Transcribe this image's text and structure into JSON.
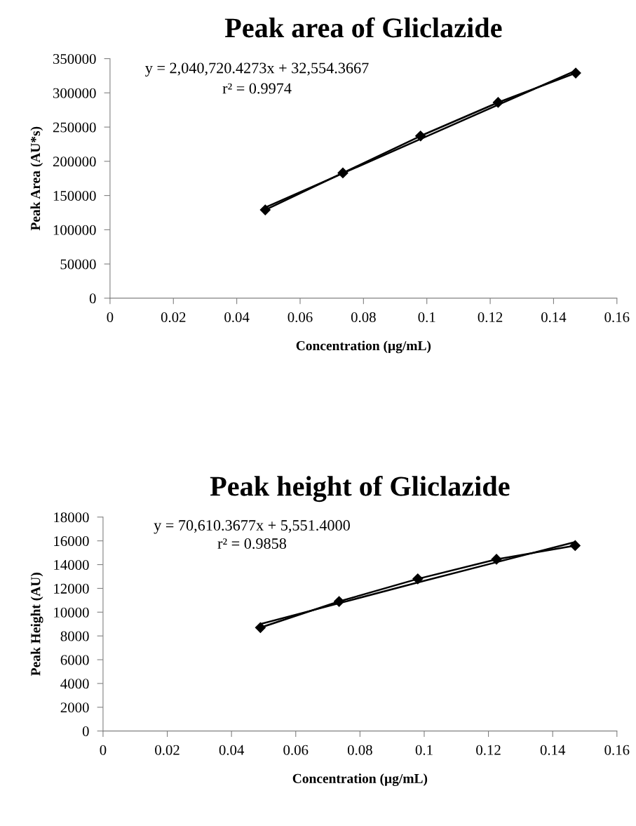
{
  "chart_data": [
    {
      "type": "line",
      "title": "Peak area of Gliclazide",
      "xlabel": "Concentration (µg/mL)",
      "ylabel": "Peak Area (AU*s)",
      "x": [
        0.049,
        0.0735,
        0.098,
        0.1225,
        0.147
      ],
      "series": [
        {
          "color": "#000000",
          "marker": "diamond",
          "values": [
            129000,
            183000,
            237000,
            286000,
            329000
          ]
        },
        {
          "color": "#000000",
          "marker": "none",
          "values": [
            132500,
            182500,
            232500,
            282500,
            332500
          ]
        }
      ],
      "xlim": [
        0,
        0.16
      ],
      "xticks": [
        0,
        0.02,
        0.04,
        0.06,
        0.08,
        0.1,
        0.12,
        0.14,
        0.16
      ],
      "ylim": [
        0,
        350000
      ],
      "yticks": [
        0,
        50000,
        100000,
        150000,
        200000,
        250000,
        300000,
        350000
      ],
      "annotations": [
        "y = 2,040,720.4273x + 32,554.3667",
        "r² = 0.9974"
      ]
    },
    {
      "type": "line",
      "title": "Peak height of Gliclazide",
      "xlabel": "Concentration (µg/mL)",
      "ylabel": "Peak Height (AU)",
      "x": [
        0.049,
        0.0735,
        0.098,
        0.1225,
        0.147
      ],
      "series": [
        {
          "color": "#000000",
          "marker": "diamond",
          "values": [
            8700,
            10900,
            12800,
            14450,
            15600
          ]
        },
        {
          "color": "#000000",
          "marker": "none",
          "values": [
            9000,
            10750,
            12500,
            14200,
            15900
          ]
        }
      ],
      "xlim": [
        0,
        0.16
      ],
      "xticks": [
        0,
        0.02,
        0.04,
        0.06,
        0.08,
        0.1,
        0.12,
        0.14,
        0.16
      ],
      "ylim": [
        0,
        18000
      ],
      "yticks": [
        0,
        2000,
        4000,
        6000,
        8000,
        10000,
        12000,
        14000,
        16000,
        18000
      ],
      "annotations": [
        "y = 70,610.3677x + 5,551.4000",
        "r² = 0.9858"
      ]
    }
  ]
}
